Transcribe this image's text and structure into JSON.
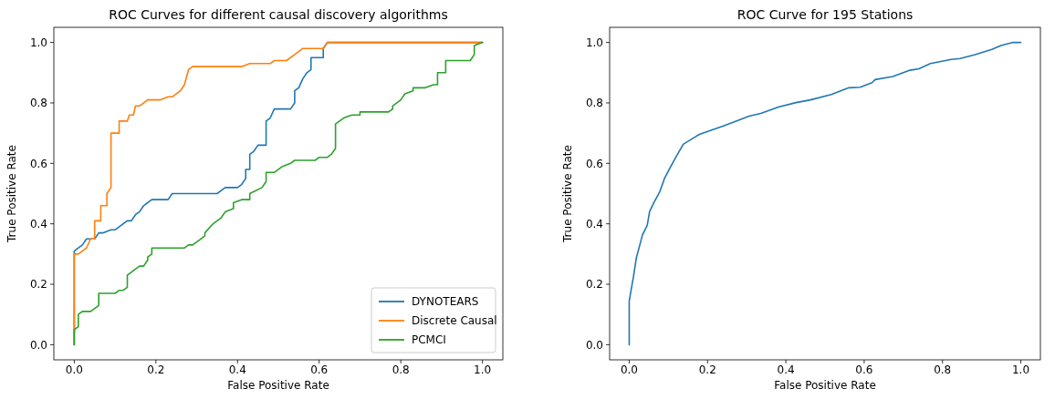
{
  "chart_data": [
    {
      "type": "line",
      "title": "ROC Curves for different causal discovery algorithms",
      "xlabel": "False Positive Rate",
      "ylabel": "True Positive Rate",
      "xlim": [
        -0.05,
        1.05
      ],
      "ylim": [
        -0.05,
        1.05
      ],
      "xticks": [
        {
          "value": 0,
          "label": "0.0"
        },
        {
          "value": 0.2,
          "label": "0.2"
        },
        {
          "value": 0.4,
          "label": "0.4"
        },
        {
          "value": 0.6,
          "label": "0.6"
        },
        {
          "value": 0.8,
          "label": "0.8"
        },
        {
          "value": 1,
          "label": "1.0"
        }
      ],
      "yticks": [
        {
          "value": 0,
          "label": "0.0"
        },
        {
          "value": 0.2,
          "label": "0.2"
        },
        {
          "value": 0.4,
          "label": "0.4"
        },
        {
          "value": 0.6,
          "label": "0.6"
        },
        {
          "value": 0.8,
          "label": "0.8"
        },
        {
          "value": 1,
          "label": "1.0"
        }
      ],
      "grid": false,
      "legend": "bottom right",
      "series": [
        {
          "name": "DYNOTEARS",
          "color": "#1f77b4",
          "x": [
            0,
            0,
            0.01,
            0.02,
            0.03,
            0.05,
            0.06,
            0.07,
            0.09,
            0.1,
            0.12,
            0.13,
            0.14,
            0.15,
            0.16,
            0.17,
            0.18,
            0.19,
            0.23,
            0.24,
            0.35,
            0.36,
            0.37,
            0.4,
            0.41,
            0.42,
            0.42,
            0.43,
            0.43,
            0.44,
            0.45,
            0.47,
            0.47,
            0.48,
            0.49,
            0.53,
            0.54,
            0.54,
            0.55,
            0.56,
            0.57,
            0.58,
            0.58,
            0.61,
            0.61,
            0.62,
            1.0
          ],
          "values": [
            0,
            0.31,
            0.32,
            0.33,
            0.35,
            0.35,
            0.37,
            0.37,
            0.38,
            0.38,
            0.4,
            0.41,
            0.41,
            0.43,
            0.44,
            0.46,
            0.47,
            0.48,
            0.48,
            0.5,
            0.5,
            0.51,
            0.52,
            0.52,
            0.53,
            0.55,
            0.58,
            0.58,
            0.63,
            0.64,
            0.66,
            0.66,
            0.74,
            0.75,
            0.78,
            0.78,
            0.8,
            0.84,
            0.85,
            0.88,
            0.9,
            0.91,
            0.95,
            0.95,
            0.98,
            1.0,
            1.0
          ]
        },
        {
          "name": "Discrete Causal",
          "color": "#ff7f0e",
          "x": [
            0,
            0,
            0.01,
            0.03,
            0.04,
            0.05,
            0.05,
            0.065,
            0.065,
            0.08,
            0.08,
            0.09,
            0.09,
            0.11,
            0.11,
            0.13,
            0.135,
            0.145,
            0.15,
            0.16,
            0.18,
            0.21,
            0.23,
            0.24,
            0.26,
            0.27,
            0.28,
            0.29,
            0.41,
            0.43,
            0.48,
            0.49,
            0.52,
            0.54,
            0.56,
            0.61,
            0.62,
            1.0
          ],
          "values": [
            0,
            0.3,
            0.3,
            0.32,
            0.35,
            0.35,
            0.41,
            0.41,
            0.46,
            0.46,
            0.5,
            0.52,
            0.7,
            0.7,
            0.74,
            0.74,
            0.76,
            0.76,
            0.79,
            0.79,
            0.81,
            0.81,
            0.82,
            0.82,
            0.84,
            0.86,
            0.91,
            0.92,
            0.92,
            0.93,
            0.93,
            0.94,
            0.94,
            0.96,
            0.98,
            0.98,
            1.0,
            1.0
          ]
        },
        {
          "name": "PCMCI",
          "color": "#2ca02c",
          "x": [
            0,
            0,
            0.01,
            0.01,
            0.02,
            0.04,
            0.06,
            0.06,
            0.1,
            0.11,
            0.12,
            0.13,
            0.13,
            0.15,
            0.16,
            0.17,
            0.18,
            0.18,
            0.19,
            0.19,
            0.27,
            0.28,
            0.29,
            0.31,
            0.32,
            0.32,
            0.34,
            0.36,
            0.37,
            0.39,
            0.39,
            0.41,
            0.43,
            0.43,
            0.46,
            0.47,
            0.47,
            0.49,
            0.51,
            0.53,
            0.54,
            0.59,
            0.6,
            0.62,
            0.63,
            0.64,
            0.64,
            0.66,
            0.68,
            0.7,
            0.7,
            0.77,
            0.78,
            0.78,
            0.8,
            0.81,
            0.83,
            0.83,
            0.86,
            0.88,
            0.89,
            0.89,
            0.91,
            0.91,
            0.97,
            0.98,
            0.98,
            1.0
          ],
          "values": [
            0,
            0.05,
            0.06,
            0.1,
            0.11,
            0.11,
            0.13,
            0.17,
            0.17,
            0.18,
            0.18,
            0.19,
            0.23,
            0.25,
            0.26,
            0.26,
            0.28,
            0.29,
            0.3,
            0.32,
            0.32,
            0.33,
            0.33,
            0.35,
            0.36,
            0.37,
            0.4,
            0.42,
            0.44,
            0.45,
            0.47,
            0.48,
            0.48,
            0.5,
            0.52,
            0.54,
            0.57,
            0.57,
            0.59,
            0.6,
            0.61,
            0.61,
            0.62,
            0.62,
            0.63,
            0.65,
            0.73,
            0.75,
            0.76,
            0.76,
            0.77,
            0.77,
            0.78,
            0.79,
            0.81,
            0.83,
            0.84,
            0.85,
            0.85,
            0.86,
            0.86,
            0.9,
            0.9,
            0.94,
            0.94,
            0.96,
            0.99,
            1.0
          ]
        }
      ]
    },
    {
      "type": "line",
      "title": "ROC Curve for 195 Stations",
      "xlabel": "False Positive Rate",
      "ylabel": "True Positive Rate",
      "xlim": [
        -0.05,
        1.05
      ],
      "ylim": [
        -0.05,
        1.05
      ],
      "xticks": [
        {
          "value": 0,
          "label": "0.0"
        },
        {
          "value": 0.2,
          "label": "0.2"
        },
        {
          "value": 0.4,
          "label": "0.4"
        },
        {
          "value": 0.6,
          "label": "0.6"
        },
        {
          "value": 0.8,
          "label": "0.8"
        },
        {
          "value": 1,
          "label": "1.0"
        }
      ],
      "yticks": [
        {
          "value": 0,
          "label": "0.0"
        },
        {
          "value": 0.2,
          "label": "0.2"
        },
        {
          "value": 0.4,
          "label": "0.4"
        },
        {
          "value": 0.6,
          "label": "0.6"
        },
        {
          "value": 0.8,
          "label": "0.8"
        },
        {
          "value": 1,
          "label": "1.0"
        }
      ],
      "grid": false,
      "series": [
        {
          "color": "#1f77b4",
          "x": [
            0,
            0,
            0.004,
            0.011,
            0.018,
            0.034,
            0.046,
            0.052,
            0.063,
            0.078,
            0.09,
            0.105,
            0.119,
            0.138,
            0.179,
            0.239,
            0.276,
            0.306,
            0.336,
            0.381,
            0.426,
            0.463,
            0.516,
            0.561,
            0.59,
            0.62,
            0.628,
            0.673,
            0.717,
            0.74,
            0.769,
            0.822,
            0.845,
            0.881,
            0.926,
            0.949,
            0.98,
            1.0
          ],
          "values": [
            0,
            0.145,
            0.175,
            0.226,
            0.286,
            0.364,
            0.395,
            0.44,
            0.47,
            0.506,
            0.55,
            0.587,
            0.62,
            0.663,
            0.696,
            0.723,
            0.741,
            0.756,
            0.765,
            0.786,
            0.801,
            0.81,
            0.828,
            0.85,
            0.852,
            0.867,
            0.877,
            0.887,
            0.908,
            0.913,
            0.93,
            0.944,
            0.947,
            0.959,
            0.977,
            0.99,
            1.0,
            1.0
          ]
        }
      ]
    }
  ]
}
